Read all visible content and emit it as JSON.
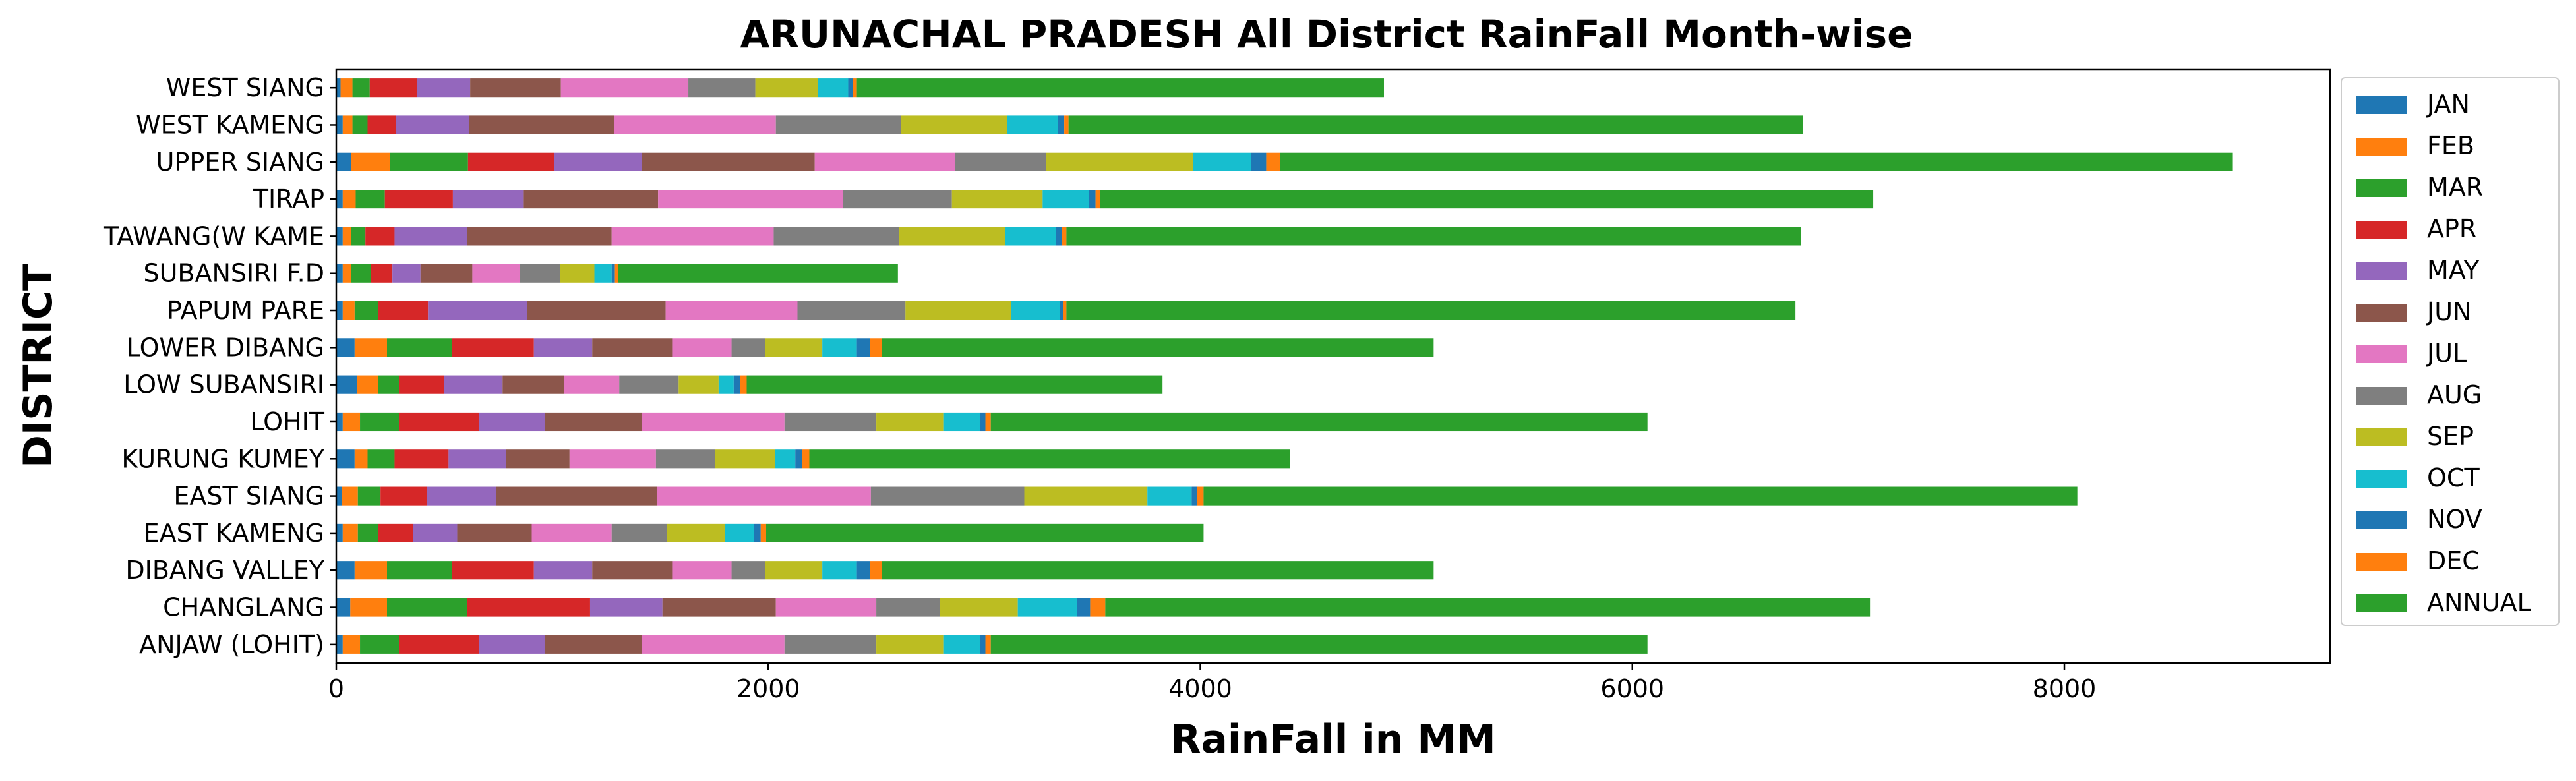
{
  "chart_data": {
    "type": "bar",
    "orientation": "horizontal",
    "stacked": true,
    "title": "ARUNACHAL PRADESH All District RainFall Month-wise",
    "xlabel": "RainFall in MM",
    "ylabel": "DISTRICT",
    "xlim": [
      0,
      9230
    ],
    "xticks": [
      0,
      2000,
      4000,
      6000,
      8000
    ],
    "grid": false,
    "legend_position": "right",
    "categories": [
      "ANJAW (LOHIT)",
      "CHANGLANG",
      "DIBANG VALLEY",
      "EAST KAMENG",
      "EAST SIANG",
      "KURUNG KUMEY",
      "LOHIT",
      "LOW SUBANSIRI",
      "LOWER DIBANG",
      "PAPUM PARE",
      "SUBANSIRI F.D",
      "TAWANG(W KAME",
      "TIRAP",
      "UPPER SIANG",
      "WEST KAMENG",
      "WEST SIANG"
    ],
    "series": [
      {
        "name": "JAN",
        "color": "#1f77b4",
        "values": [
          30,
          65,
          85,
          30,
          25,
          85,
          30,
          95,
          85,
          30,
          30,
          30,
          30,
          70,
          30,
          20
        ]
      },
      {
        "name": "FEB",
        "color": "#ff7f0e",
        "values": [
          80,
          170,
          150,
          70,
          75,
          60,
          80,
          100,
          150,
          55,
          40,
          40,
          60,
          180,
          45,
          55
        ]
      },
      {
        "name": "MAR",
        "color": "#2ca02c",
        "values": [
          180,
          370,
          300,
          95,
          105,
          125,
          180,
          95,
          300,
          110,
          90,
          65,
          135,
          360,
          70,
          80
        ]
      },
      {
        "name": "APR",
        "color": "#d62728",
        "values": [
          370,
          570,
          380,
          160,
          215,
          250,
          370,
          210,
          380,
          230,
          100,
          135,
          315,
          400,
          130,
          220
        ]
      },
      {
        "name": "MAY",
        "color": "#9467bd",
        "values": [
          305,
          335,
          270,
          205,
          320,
          265,
          305,
          270,
          270,
          460,
          130,
          335,
          325,
          405,
          340,
          245
        ]
      },
      {
        "name": "JUN",
        "color": "#8c564b",
        "values": [
          450,
          525,
          370,
          345,
          745,
          295,
          450,
          285,
          370,
          640,
          240,
          670,
          625,
          800,
          670,
          420
        ]
      },
      {
        "name": "JUL",
        "color": "#e377c2",
        "values": [
          660,
          465,
          275,
          370,
          990,
          400,
          660,
          255,
          275,
          610,
          220,
          750,
          855,
          650,
          750,
          590
        ]
      },
      {
        "name": "AUG",
        "color": "#7f7f7f",
        "values": [
          425,
          295,
          155,
          255,
          710,
          275,
          425,
          275,
          155,
          500,
          185,
          580,
          505,
          420,
          580,
          310
        ]
      },
      {
        "name": "SEP",
        "color": "#bcbd22",
        "values": [
          310,
          360,
          265,
          270,
          570,
          275,
          310,
          185,
          265,
          490,
          160,
          490,
          420,
          680,
          490,
          290
        ]
      },
      {
        "name": "OCT",
        "color": "#17becf",
        "values": [
          170,
          275,
          160,
          135,
          205,
          95,
          170,
          70,
          160,
          225,
          80,
          235,
          215,
          270,
          235,
          140
        ]
      },
      {
        "name": "NOV",
        "color": "#1f77b4",
        "values": [
          25,
          60,
          60,
          30,
          25,
          30,
          25,
          30,
          60,
          15,
          15,
          30,
          30,
          70,
          30,
          20
        ]
      },
      {
        "name": "DEC",
        "color": "#ff7f0e",
        "values": [
          25,
          70,
          55,
          25,
          30,
          35,
          25,
          30,
          55,
          15,
          15,
          20,
          20,
          65,
          20,
          20
        ]
      },
      {
        "name": "ANNUAL",
        "color": "#2ca02c",
        "values": [
          3040,
          3540,
          2555,
          2025,
          4045,
          2225,
          3040,
          1925,
          2555,
          3375,
          1295,
          3400,
          3580,
          4410,
          3400,
          2440
        ]
      }
    ]
  }
}
